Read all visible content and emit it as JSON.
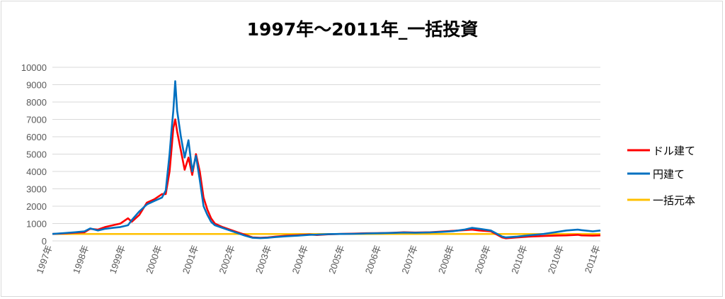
{
  "chart_data": {
    "type": "line",
    "title": "1997年～2011年_一括投資",
    "xlabel": "",
    "ylabel": "",
    "ylim": [
      0,
      10000
    ],
    "yticks": [
      "0",
      "1000",
      "2000",
      "3000",
      "4000",
      "5000",
      "6000",
      "7000",
      "8000",
      "9000",
      "10000"
    ],
    "grid": true,
    "legend_position": "right",
    "x_tick_labels": [
      "1997年",
      "1998年",
      "1999年",
      "2000年",
      "2001年",
      "2002年",
      "2003年",
      "2004年",
      "2005年",
      "2006年",
      "2007年",
      "2008年",
      "2009年",
      "2010年",
      "2010年",
      "2011年"
    ],
    "x": [
      1997.0,
      1997.3,
      1997.6,
      1997.85,
      1998.0,
      1998.2,
      1998.4,
      1998.6,
      1998.8,
      1999.0,
      1999.1,
      1999.3,
      1999.5,
      1999.7,
      1999.9,
      2000.0,
      2000.1,
      2000.15,
      2000.2,
      2000.25,
      2000.3,
      2000.4,
      2000.5,
      2000.6,
      2000.7,
      2000.8,
      2000.9,
      2001.0,
      2001.1,
      2001.2,
      2001.3,
      2001.5,
      2001.7,
      2001.9,
      2002.1,
      2002.3,
      2002.5,
      2002.7,
      2002.9,
      2003.2,
      2003.5,
      2003.8,
      2004.0,
      2004.3,
      2004.6,
      2005.0,
      2005.3,
      2005.6,
      2006.0,
      2006.3,
      2006.6,
      2007.0,
      2007.3,
      2007.6,
      2007.9,
      2008.1,
      2008.3,
      2008.6,
      2008.9,
      2009.0,
      2009.3,
      2009.6,
      2010.0,
      2010.3,
      2010.6,
      2010.9,
      2011.0,
      2011.3,
      2011.5
    ],
    "series": [
      {
        "name": "ドル建て",
        "color": "#ff0000",
        "values": [
          400,
          430,
          470,
          500,
          700,
          650,
          800,
          900,
          1000,
          1300,
          1100,
          1500,
          2200,
          2400,
          2700,
          2700,
          4000,
          5200,
          6500,
          7000,
          6300,
          5200,
          4100,
          4800,
          3800,
          5000,
          4000,
          2500,
          1800,
          1300,
          1000,
          800,
          650,
          500,
          350,
          200,
          180,
          200,
          250,
          300,
          330,
          370,
          340,
          380,
          400,
          420,
          440,
          450,
          470,
          500,
          480,
          500,
          540,
          580,
          620,
          650,
          600,
          550,
          200,
          150,
          200,
          250,
          280,
          300,
          320,
          350,
          320,
          300,
          320
        ]
      },
      {
        "name": "円建て",
        "color": "#0070c0",
        "values": [
          400,
          450,
          500,
          550,
          720,
          600,
          700,
          750,
          800,
          900,
          1200,
          1700,
          2100,
          2300,
          2500,
          2900,
          5000,
          6300,
          7500,
          9200,
          7500,
          6000,
          4800,
          5800,
          4000,
          4900,
          3500,
          2000,
          1500,
          1100,
          900,
          750,
          600,
          450,
          300,
          180,
          160,
          180,
          220,
          270,
          300,
          350,
          360,
          390,
          400,
          410,
          430,
          440,
          460,
          480,
          470,
          490,
          520,
          560,
          650,
          750,
          700,
          600,
          250,
          200,
          250,
          320,
          400,
          500,
          600,
          650,
          620,
          550,
          600
        ]
      },
      {
        "name": "一括元本",
        "color": "#ffc000",
        "values": [
          400,
          400,
          400,
          400,
          400,
          400,
          400,
          400,
          400,
          400,
          400,
          400,
          400,
          400,
          400,
          400,
          400,
          400,
          400,
          400,
          400,
          400,
          400,
          400,
          400,
          400,
          400,
          400,
          400,
          400,
          400,
          400,
          400,
          400,
          400,
          400,
          400,
          400,
          400,
          400,
          400,
          400,
          400,
          400,
          400,
          400,
          400,
          400,
          400,
          400,
          400,
          400,
          400,
          400,
          400,
          400,
          400,
          400,
          400,
          400,
          400,
          400,
          400,
          400,
          400,
          400,
          400,
          400,
          400
        ]
      }
    ]
  }
}
